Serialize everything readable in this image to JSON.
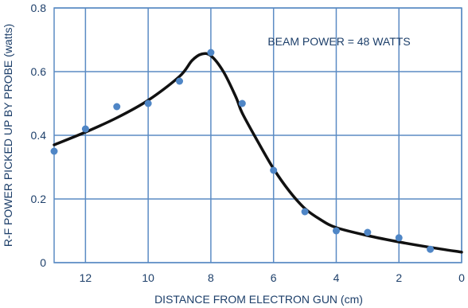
{
  "chart_data": {
    "type": "scatter",
    "xlabel": "DISTANCE FROM ELECTRON GUN (cm)",
    "ylabel": "R-F POWER PICKED UP BY PROBE (watts)",
    "annotation": "BEAM POWER = 48 WATTS",
    "xlim": [
      13,
      0
    ],
    "ylim": [
      0,
      0.8
    ],
    "x_ticks": [
      12,
      10,
      8,
      6,
      4,
      2,
      0
    ],
    "x_tick_labels": [
      "12",
      "10",
      "8",
      "6",
      "4",
      "2",
      "0"
    ],
    "y_ticks": [
      0,
      0.2,
      0.4,
      0.6,
      0.8
    ],
    "y_tick_labels": [
      "0",
      "0.2",
      "0.4",
      "0.6",
      "0.8"
    ],
    "grid": true,
    "points": {
      "x": [
        13,
        12,
        11,
        10,
        9,
        8,
        7,
        6,
        5,
        4,
        3,
        2,
        1
      ],
      "y": [
        0.35,
        0.42,
        0.49,
        0.5,
        0.57,
        0.66,
        0.5,
        0.29,
        0.16,
        0.1,
        0.095,
        0.078,
        0.042
      ]
    },
    "fit_curve": {
      "x": [
        13,
        12,
        11,
        10,
        9,
        8.6,
        8.3,
        8,
        7.6,
        7.2,
        7,
        6.5,
        6,
        5.5,
        5,
        4.5,
        4,
        3,
        2,
        1,
        0
      ],
      "y": [
        0.37,
        0.41,
        0.455,
        0.51,
        0.585,
        0.635,
        0.655,
        0.65,
        0.6,
        0.52,
        0.47,
        0.38,
        0.295,
        0.225,
        0.17,
        0.135,
        0.11,
        0.085,
        0.065,
        0.048,
        0.033
      ]
    },
    "colors": {
      "grid": "#5b8bc4",
      "points": "#4f86c6",
      "curve": "#111111",
      "text": "#1d3f6a"
    }
  }
}
